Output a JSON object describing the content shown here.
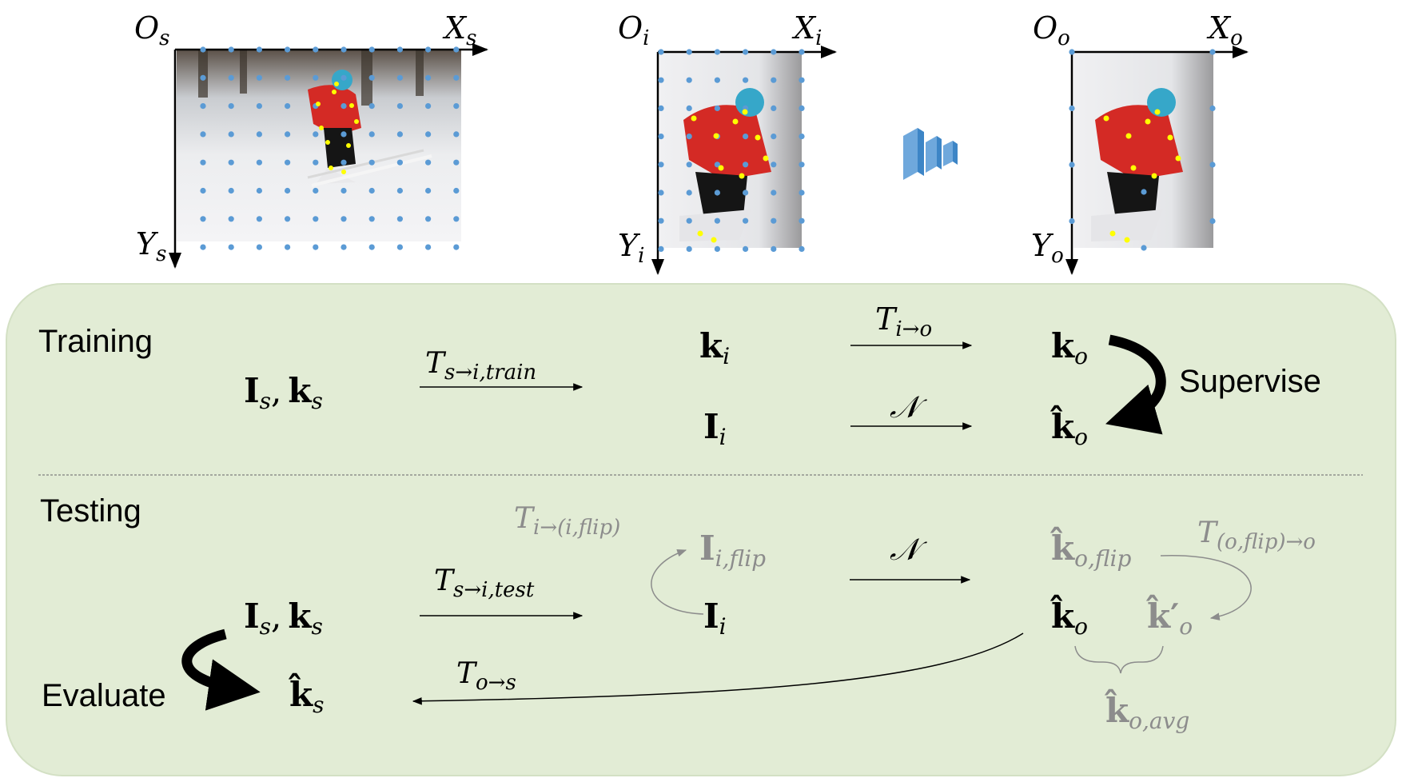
{
  "colors": {
    "panel_fill": "#e2ecd5",
    "panel_stroke": "#d3e0c4",
    "dot": "#5b9bd5",
    "keypoint": "#ffff00",
    "black": "#000000",
    "gray": "#8c8c8c",
    "network": "#5b9bd5"
  },
  "frames": {
    "source": {
      "origin": "O",
      "origin_sub": "s",
      "x_axis": "X",
      "x_axis_sub": "s",
      "y_axis": "Y",
      "y_axis_sub": "s"
    },
    "input": {
      "origin": "O",
      "origin_sub": "i",
      "x_axis": "X",
      "x_axis_sub": "i",
      "y_axis": "Y",
      "y_axis_sub": "i"
    },
    "output": {
      "origin": "O",
      "origin_sub": "o",
      "x_axis": "X",
      "x_axis_sub": "o",
      "y_axis": "Y",
      "y_axis_sub": "o"
    }
  },
  "network_icon": "cnn-network-icon",
  "training": {
    "label": "Training",
    "input_pair": {
      "img": "I",
      "img_sub": "s",
      "comma": ",",
      "kp": "k",
      "kp_sub": "s"
    },
    "transform_train": {
      "base": "T",
      "sub": "s→i,train"
    },
    "k_i": {
      "base": "k",
      "sub": "i"
    },
    "I_i": {
      "base": "I",
      "sub": "i"
    },
    "transform_io": {
      "base": "T",
      "sub": "i→o"
    },
    "network": "𝒩",
    "k_o": {
      "base": "k",
      "sub": "o"
    },
    "k_hat_o": {
      "base": "k̂",
      "sub": "o"
    },
    "supervise": "Supervise"
  },
  "testing": {
    "label": "Testing",
    "flip_transform": {
      "base": "T",
      "sub": "i→(i,flip)"
    },
    "I_i_flip": {
      "base": "I",
      "sub": "i,flip"
    },
    "network": "𝒩",
    "k_hat_o_flip": {
      "base": "k̂",
      "sub": "o,flip"
    },
    "flip_back": {
      "base": "T",
      "sub": "(o,flip)→o"
    },
    "transform_test": {
      "base": "T",
      "sub": "s→i,test"
    },
    "input_pair": {
      "img": "I",
      "img_sub": "s",
      "comma": ",",
      "kp": "k",
      "kp_sub": "s"
    },
    "I_i": {
      "base": "I",
      "sub": "i"
    },
    "k_hat_o": {
      "base": "k̂",
      "sub": "o"
    },
    "k_hat_prime_o": {
      "base": "k̂′",
      "sub": "o"
    },
    "k_hat_o_avg": {
      "base": "k̂",
      "sub": "o,avg"
    },
    "transform_os": {
      "base": "T",
      "sub": "o→s"
    },
    "k_hat_s": {
      "base": "k̂",
      "sub": "s"
    },
    "evaluate": "Evaluate"
  }
}
